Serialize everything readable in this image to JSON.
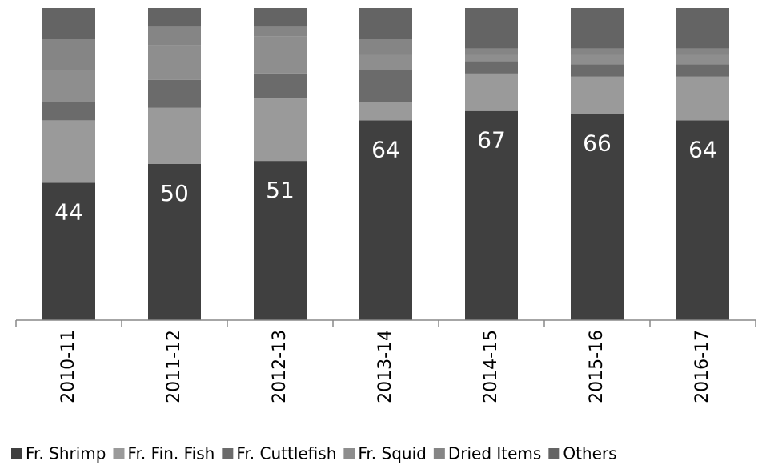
{
  "chart_data": {
    "type": "stacked_bar_percent",
    "categories": [
      "2010-11",
      "2011-12",
      "2012-13",
      "2013-14",
      "2014-15",
      "2015-16",
      "2016-17"
    ],
    "ylim": [
      0,
      100
    ],
    "series": [
      {
        "name": "Fr. Shrimp",
        "color": "#404040",
        "data_labels": true,
        "values": [
          44,
          50,
          51,
          64,
          67,
          66,
          64
        ]
      },
      {
        "name": "Fr. Fin. Fish",
        "color": "#9a9a9a",
        "values": [
          20,
          18,
          20,
          6,
          12,
          12,
          14
        ]
      },
      {
        "name": "Fr. Cuttlefish",
        "color": "#6b6b6b",
        "values": [
          6,
          9,
          8,
          10,
          4,
          4,
          4
        ]
      },
      {
        "name": "Fr. Squid",
        "color": "#8e8e8e",
        "values": [
          10,
          11,
          12,
          5,
          2,
          3,
          3
        ]
      },
      {
        "name": "Dried Items",
        "color": "#858585",
        "values": [
          10,
          6,
          3,
          5,
          2,
          2,
          2
        ]
      },
      {
        "name": "Others",
        "color": "#646464",
        "values": [
          10,
          6,
          6,
          10,
          13,
          13,
          13
        ]
      }
    ],
    "legend": "bottom"
  }
}
